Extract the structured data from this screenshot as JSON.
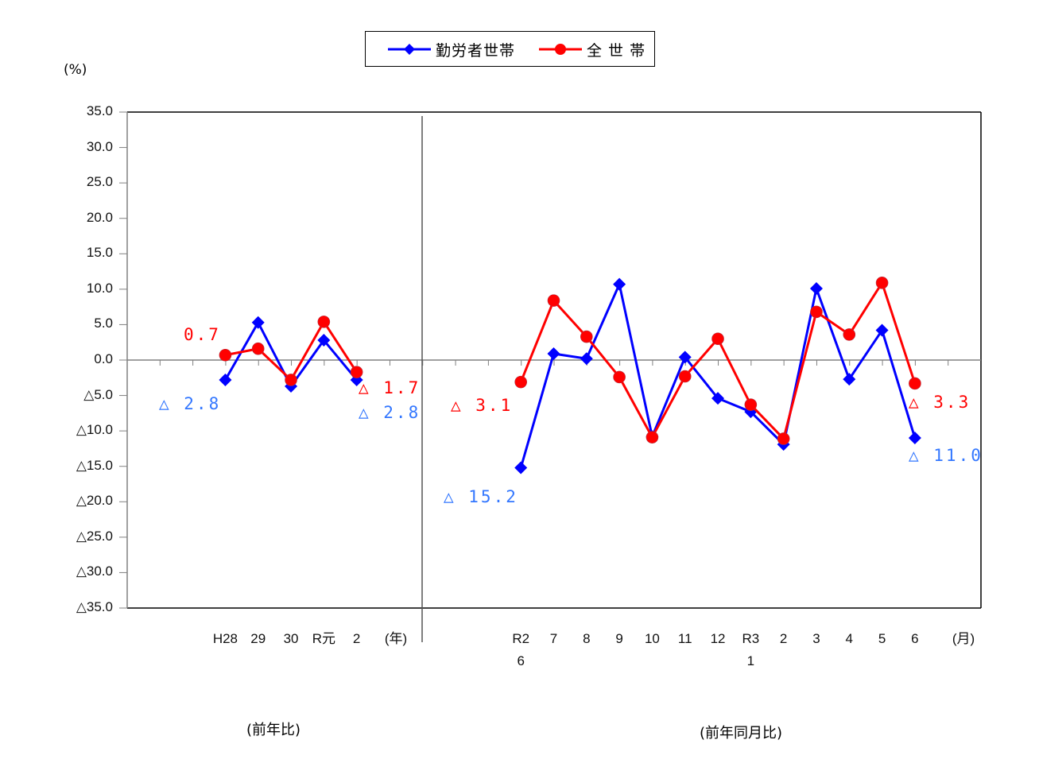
{
  "legend": {
    "series_blue": "勤労者世帯",
    "series_red": "全 世 帯"
  },
  "axis": {
    "y_unit": "(%)",
    "y_ticks": [
      "35.0",
      "30.0",
      "25.0",
      "20.0",
      "15.0",
      "10.0",
      "5.0",
      "0.0",
      "△5.0",
      "△10.0",
      "△15.0",
      "△20.0",
      "△25.0",
      "△30.0",
      "△35.0"
    ],
    "annual_unit": "(年)",
    "monthly_unit": "(月)",
    "annual_labels": [
      "H28",
      "29",
      "30",
      "R元",
      "2"
    ],
    "monthly_labels": [
      "R2\n6",
      "7",
      "8",
      "9",
      "10",
      "11",
      "12",
      "R3\n1",
      "2",
      "3",
      "4",
      "5",
      "6"
    ]
  },
  "annotations": {
    "annual_red_first": "0.7",
    "annual_blue_first": "△ 2.8",
    "annual_red_last": "△ 1.7",
    "annual_blue_last": "△ 2.8",
    "monthly_red_first": "△ 3.1",
    "monthly_blue_first": "△ 15.2",
    "monthly_red_last": "△ 3.3",
    "monthly_blue_last": "△ 11.0"
  },
  "captions": {
    "annual": "(前年比)",
    "monthly": "(前年同月比)"
  },
  "colors": {
    "blue": "#0000ff",
    "red": "#ff0000",
    "anno_blue": "#3377ff",
    "anno_red": "#ff0000",
    "axis": "#808080",
    "frame": "#000000"
  },
  "chart_data": {
    "type": "line",
    "title": "",
    "ylabel": "(%)",
    "ylim": [
      -35,
      35
    ],
    "grid": false,
    "legend_position": "top",
    "panels": [
      {
        "name": "前年比",
        "x_unit": "年",
        "categories": [
          "H28",
          "29",
          "30",
          "R元",
          "2"
        ],
        "series": [
          {
            "name": "勤労者世帯",
            "marker": "diamond",
            "color": "#0000ff",
            "values": [
              -2.8,
              5.3,
              -3.7,
              2.8,
              -2.8
            ]
          },
          {
            "name": "全 世 帯",
            "marker": "circle",
            "color": "#ff0000",
            "values": [
              0.7,
              1.6,
              -2.8,
              5.4,
              -1.7
            ]
          }
        ]
      },
      {
        "name": "前年同月比",
        "x_unit": "月",
        "categories": [
          "R2/6",
          "7",
          "8",
          "9",
          "10",
          "11",
          "12",
          "R3/1",
          "2",
          "3",
          "4",
          "5",
          "6"
        ],
        "series": [
          {
            "name": "勤労者世帯",
            "marker": "diamond",
            "color": "#0000ff",
            "values": [
              -15.2,
              0.9,
              0.2,
              10.7,
              -10.8,
              0.4,
              -5.4,
              -7.3,
              -11.9,
              10.1,
              -2.7,
              4.2,
              -11.0
            ]
          },
          {
            "name": "全 世 帯",
            "marker": "circle",
            "color": "#ff0000",
            "values": [
              -3.1,
              8.4,
              3.3,
              -2.4,
              -10.9,
              -2.3,
              3.0,
              -6.3,
              -11.1,
              6.8,
              3.6,
              10.9,
              -3.3
            ]
          }
        ]
      }
    ]
  }
}
